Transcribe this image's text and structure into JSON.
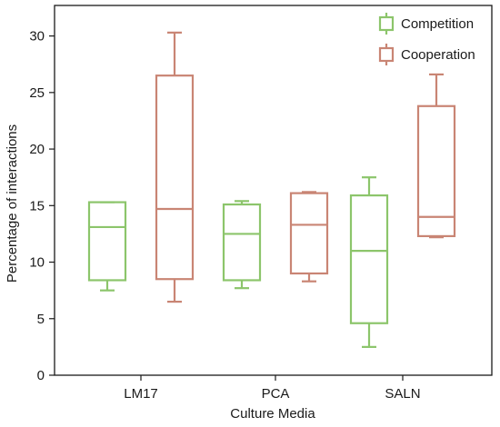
{
  "chart_data": {
    "type": "box",
    "title": "",
    "xlabel": "Culture Media",
    "ylabel": "Percentage of interactions",
    "ylim": [
      0,
      32.7
    ],
    "yticks": [
      0,
      5,
      10,
      15,
      20,
      25,
      30
    ],
    "categories": [
      "LM17",
      "PCA",
      "SALN"
    ],
    "legend_position": "top-right",
    "grid": false,
    "series": [
      {
        "name": "Competition",
        "color": "#8cc56b",
        "boxes": [
          {
            "min": 7.5,
            "q1": 8.4,
            "median": 13.1,
            "q3": 15.3,
            "max": 15.3
          },
          {
            "min": 7.7,
            "q1": 8.4,
            "median": 12.5,
            "q3": 15.1,
            "max": 15.4
          },
          {
            "min": 2.5,
            "q1": 4.6,
            "median": 11.0,
            "q3": 15.9,
            "max": 17.5
          }
        ]
      },
      {
        "name": "Cooperation",
        "color": "#c98574",
        "boxes": [
          {
            "min": 6.5,
            "q1": 8.5,
            "median": 14.7,
            "q3": 26.5,
            "max": 30.3
          },
          {
            "min": 8.3,
            "q1": 9.0,
            "median": 13.3,
            "q3": 16.1,
            "max": 16.2
          },
          {
            "min": 12.2,
            "q1": 12.3,
            "median": 14.0,
            "q3": 23.8,
            "max": 26.6
          }
        ]
      }
    ]
  }
}
